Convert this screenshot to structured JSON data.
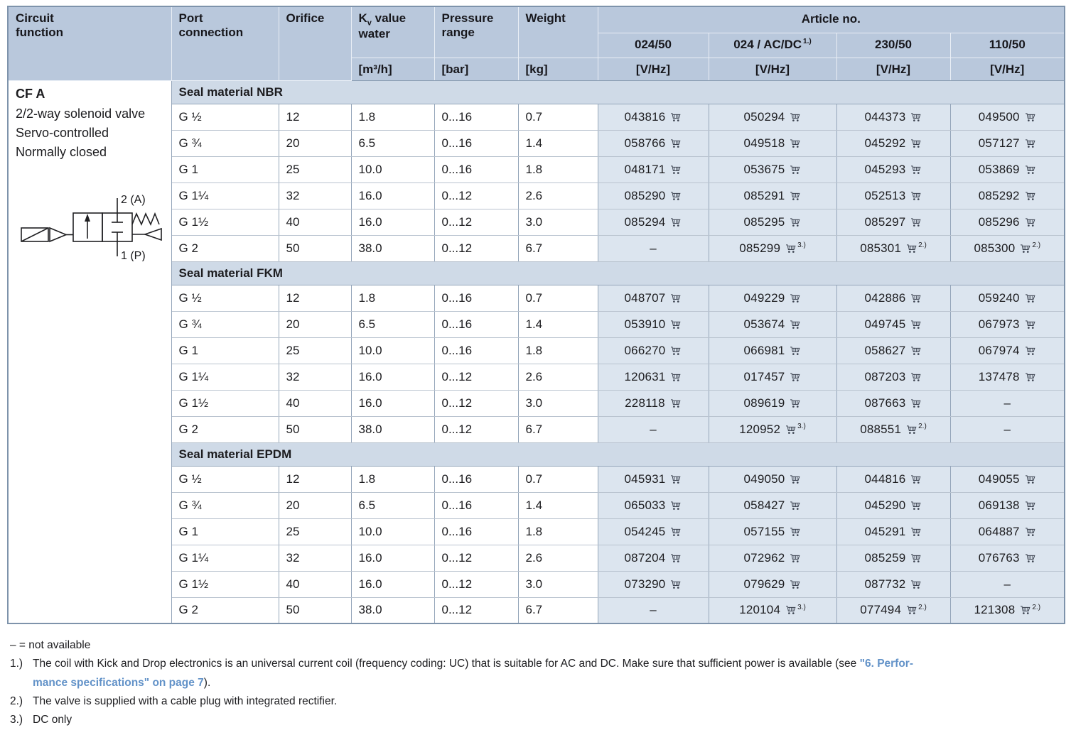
{
  "header": {
    "circuit": "Circuit\nfunction",
    "port": "Port\nconnection",
    "orifice": "Orifice",
    "kv_k": "K",
    "kv_sub": "v",
    "kv_rest": " value\nwater",
    "pressure": "Pressure\nrange",
    "weight": "Weight",
    "article_group": "Article no.",
    "voltages": [
      "024/50",
      "024 / AC/DC",
      "230/50",
      "110/50"
    ],
    "voltage_note_sup": "1.)",
    "units": {
      "kv": "[m³/h]",
      "pressure": "[bar]",
      "weight": "[kg]",
      "voltage": "[V/Hz]"
    }
  },
  "product": {
    "code": "CF A",
    "description": [
      "2/2-way solenoid valve",
      "Servo-controlled",
      "Normally closed"
    ],
    "diagram_ports": {
      "top": "2 (A)",
      "bottom": "1 (P)"
    }
  },
  "sections": [
    {
      "label": "Seal material NBR",
      "rows": [
        {
          "port": "G ½",
          "orifice": "12",
          "kv": "1.8",
          "pressure": "0...16",
          "weight": "0.7",
          "articles": [
            {
              "no": "043816",
              "cart": true
            },
            {
              "no": "050294",
              "cart": true
            },
            {
              "no": "044373",
              "cart": true
            },
            {
              "no": "049500",
              "cart": true
            }
          ]
        },
        {
          "port": "G ¾",
          "orifice": "20",
          "kv": "6.5",
          "pressure": "0...16",
          "weight": "1.4",
          "articles": [
            {
              "no": "058766",
              "cart": true
            },
            {
              "no": "049518",
              "cart": true
            },
            {
              "no": "045292",
              "cart": true
            },
            {
              "no": "057127",
              "cart": true
            }
          ]
        },
        {
          "port": "G 1",
          "orifice": "25",
          "kv": "10.0",
          "pressure": "0...16",
          "weight": "1.8",
          "articles": [
            {
              "no": "048171",
              "cart": true
            },
            {
              "no": "053675",
              "cart": true
            },
            {
              "no": "045293",
              "cart": true
            },
            {
              "no": "053869",
              "cart": true
            }
          ]
        },
        {
          "port": "G 1¼",
          "orifice": "32",
          "kv": "16.0",
          "pressure": "0...12",
          "weight": "2.6",
          "articles": [
            {
              "no": "085290",
              "cart": true
            },
            {
              "no": "085291",
              "cart": true
            },
            {
              "no": "052513",
              "cart": true
            },
            {
              "no": "085292",
              "cart": true
            }
          ]
        },
        {
          "port": "G 1½",
          "orifice": "40",
          "kv": "16.0",
          "pressure": "0...12",
          "weight": "3.0",
          "articles": [
            {
              "no": "085294",
              "cart": true
            },
            {
              "no": "085295",
              "cart": true
            },
            {
              "no": "085297",
              "cart": true
            },
            {
              "no": "085296",
              "cart": true
            }
          ]
        },
        {
          "port": "G 2",
          "orifice": "50",
          "kv": "38.0",
          "pressure": "0...12",
          "weight": "6.7",
          "articles": [
            {
              "no": "–",
              "cart": false
            },
            {
              "no": "085299",
              "cart": true,
              "sup": "3.)"
            },
            {
              "no": "085301",
              "cart": true,
              "sup": "2.)"
            },
            {
              "no": "085300",
              "cart": true,
              "sup": "2.)"
            }
          ]
        }
      ]
    },
    {
      "label": "Seal material FKM",
      "rows": [
        {
          "port": "G ½",
          "orifice": "12",
          "kv": "1.8",
          "pressure": "0...16",
          "weight": "0.7",
          "articles": [
            {
              "no": "048707",
              "cart": true
            },
            {
              "no": "049229",
              "cart": true
            },
            {
              "no": "042886",
              "cart": true
            },
            {
              "no": "059240",
              "cart": true
            }
          ]
        },
        {
          "port": "G ¾",
          "orifice": "20",
          "kv": "6.5",
          "pressure": "0...16",
          "weight": "1.4",
          "articles": [
            {
              "no": "053910",
              "cart": true
            },
            {
              "no": "053674",
              "cart": true
            },
            {
              "no": "049745",
              "cart": true
            },
            {
              "no": "067973",
              "cart": true
            }
          ]
        },
        {
          "port": "G 1",
          "orifice": "25",
          "kv": "10.0",
          "pressure": "0...16",
          "weight": "1.8",
          "articles": [
            {
              "no": "066270",
              "cart": true
            },
            {
              "no": "066981",
              "cart": true
            },
            {
              "no": "058627",
              "cart": true
            },
            {
              "no": "067974",
              "cart": true
            }
          ]
        },
        {
          "port": "G 1¼",
          "orifice": "32",
          "kv": "16.0",
          "pressure": "0...12",
          "weight": "2.6",
          "articles": [
            {
              "no": "120631",
              "cart": true
            },
            {
              "no": "017457",
              "cart": true
            },
            {
              "no": "087203",
              "cart": true
            },
            {
              "no": "137478",
              "cart": true
            }
          ]
        },
        {
          "port": "G 1½",
          "orifice": "40",
          "kv": "16.0",
          "pressure": "0...12",
          "weight": "3.0",
          "articles": [
            {
              "no": "228118",
              "cart": true
            },
            {
              "no": "089619",
              "cart": true
            },
            {
              "no": "087663",
              "cart": true
            },
            {
              "no": "–",
              "cart": false
            }
          ]
        },
        {
          "port": "G 2",
          "orifice": "50",
          "kv": "38.0",
          "pressure": "0...12",
          "weight": "6.7",
          "articles": [
            {
              "no": "–",
              "cart": false
            },
            {
              "no": "120952",
              "cart": true,
              "sup": "3.)"
            },
            {
              "no": "088551",
              "cart": true,
              "sup": "2.)"
            },
            {
              "no": "–",
              "cart": false
            }
          ]
        }
      ]
    },
    {
      "label": "Seal material EPDM",
      "rows": [
        {
          "port": "G ½",
          "orifice": "12",
          "kv": "1.8",
          "pressure": "0...16",
          "weight": "0.7",
          "articles": [
            {
              "no": "045931",
              "cart": true
            },
            {
              "no": "049050",
              "cart": true
            },
            {
              "no": "044816",
              "cart": true
            },
            {
              "no": "049055",
              "cart": true
            }
          ]
        },
        {
          "port": "G ¾",
          "orifice": "20",
          "kv": "6.5",
          "pressure": "0...16",
          "weight": "1.4",
          "articles": [
            {
              "no": "065033",
              "cart": true
            },
            {
              "no": "058427",
              "cart": true
            },
            {
              "no": "045290",
              "cart": true
            },
            {
              "no": "069138",
              "cart": true
            }
          ]
        },
        {
          "port": "G 1",
          "orifice": "25",
          "kv": "10.0",
          "pressure": "0...16",
          "weight": "1.8",
          "articles": [
            {
              "no": "054245",
              "cart": true
            },
            {
              "no": "057155",
              "cart": true
            },
            {
              "no": "045291",
              "cart": true
            },
            {
              "no": "064887",
              "cart": true
            }
          ]
        },
        {
          "port": "G 1¼",
          "orifice": "32",
          "kv": "16.0",
          "pressure": "0...12",
          "weight": "2.6",
          "articles": [
            {
              "no": "087204",
              "cart": true
            },
            {
              "no": "072962",
              "cart": true
            },
            {
              "no": "085259",
              "cart": true
            },
            {
              "no": "076763",
              "cart": true
            }
          ]
        },
        {
          "port": "G 1½",
          "orifice": "40",
          "kv": "16.0",
          "pressure": "0...12",
          "weight": "3.0",
          "articles": [
            {
              "no": "073290",
              "cart": true
            },
            {
              "no": "079629",
              "cart": true
            },
            {
              "no": "087732",
              "cart": true
            },
            {
              "no": "–",
              "cart": false
            }
          ]
        },
        {
          "port": "G 2",
          "orifice": "50",
          "kv": "38.0",
          "pressure": "0...12",
          "weight": "6.7",
          "articles": [
            {
              "no": "–",
              "cart": false
            },
            {
              "no": "120104",
              "cart": true,
              "sup": "3.)"
            },
            {
              "no": "077494",
              "cart": true,
              "sup": "2.)"
            },
            {
              "no": "121308",
              "cart": true,
              "sup": "2.)"
            }
          ]
        }
      ]
    }
  ],
  "notes": {
    "not_available": "– = not available",
    "note1": {
      "num": "1.)",
      "line1_black": "The coil with Kick and Drop electronics is an universal current coil (frequency coding: UC) that is suitable for AC and DC. Make sure that sufficient power is available (see ",
      "line1_blue": "\"6. Perfor-",
      "line2_blue": "mance specifications\" on page 7",
      "line2_black": ")."
    },
    "note2": {
      "num": "2.)",
      "text": "The valve is supplied with a cable plug with integrated rectifier."
    },
    "note3": {
      "num": "3.)",
      "text": "DC only"
    }
  }
}
